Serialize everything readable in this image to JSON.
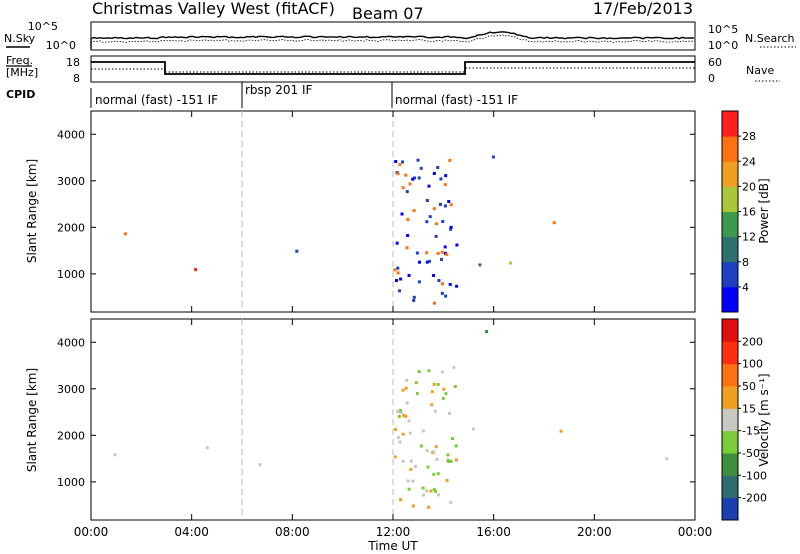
{
  "header": {
    "station": "Christmas Valley West (fitACF)",
    "beam": "Beam 07",
    "date": "17/Feb/2013"
  },
  "strip_labels": {
    "nsky": "N.Sky",
    "nsky_ticks": [
      "10^5",
      "10^0"
    ],
    "nsearch": "N.Search",
    "nsearch_ticks": [
      "10^5",
      "10^0"
    ],
    "freq_line1": "Freq.",
    "freq_line2": "[MHz]",
    "freq_ticks": [
      "18",
      "8"
    ],
    "nave": "Nave",
    "nave_ticks": [
      "60",
      "0"
    ],
    "cpid": "CPID"
  },
  "cpid_segments": [
    {
      "label": "normal (fast) -151 IF",
      "start": 0,
      "end": 6
    },
    {
      "label": "rbsp 201 IF",
      "start": 6,
      "end": 12
    },
    {
      "label": "normal (fast) -151 IF",
      "start": 12,
      "end": 24
    }
  ],
  "chart_data": [
    {
      "type": "heatmap",
      "name": "power",
      "ylabel": "Slant Range [km]",
      "xlabel": "Time UT",
      "xlim": [
        0,
        24
      ],
      "ylim": [
        180,
        4500
      ],
      "x_ticks": [
        "00:00",
        "04:00",
        "08:00",
        "12:00",
        "16:00",
        "20:00",
        "00:00"
      ],
      "x_tick_values": [
        0,
        4,
        8,
        12,
        16,
        20,
        24
      ],
      "y_ticks": [
        1000,
        2000,
        3000,
        4000
      ],
      "colorbar": {
        "label": "Power [dB]",
        "tick_labels": [
          "4",
          "8",
          "12",
          "16",
          "20",
          "24",
          "28"
        ],
        "colors": [
          "#0000ff",
          "#1e3fbf",
          "#2e6f6f",
          "#3c9a4c",
          "#a8c83a",
          "#f0a020",
          "#ff7010",
          "#ff2020"
        ]
      }
    },
    {
      "type": "heatmap",
      "name": "velocity",
      "ylabel": "Slant Range [km]",
      "xlabel": "Time UT",
      "xlim": [
        0,
        24
      ],
      "ylim": [
        180,
        4500
      ],
      "x_ticks": [
        "00:00",
        "04:00",
        "08:00",
        "12:00",
        "16:00",
        "20:00",
        "00:00"
      ],
      "x_tick_values": [
        0,
        4,
        8,
        12,
        16,
        20,
        24
      ],
      "y_ticks": [
        1000,
        2000,
        3000,
        4000
      ],
      "colorbar": {
        "label": "Velocity [m s⁻¹]",
        "tick_labels": [
          "200",
          "100",
          "50",
          "15",
          "-15",
          "-50",
          "-100",
          "-200"
        ],
        "colors": [
          "#1a3fb0",
          "#2f6b6b",
          "#3d8f3d",
          "#7acc3a",
          "#c8c8c0",
          "#f0a020",
          "#ff7010",
          "#ff3010",
          "#e01010"
        ]
      }
    }
  ],
  "time_axis_label": "Time UT"
}
